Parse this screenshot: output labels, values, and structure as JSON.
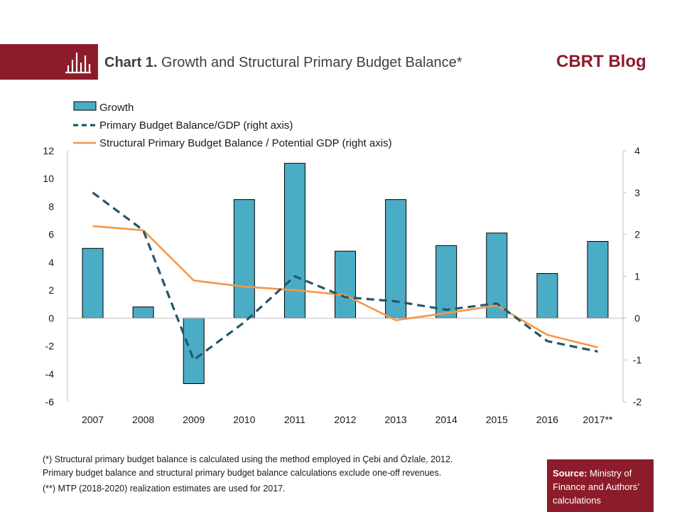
{
  "header": {
    "title_bold": "Chart 1.",
    "title_rest": " Growth and Structural Primary Budget Balance*",
    "brand": "CBRT Blog",
    "icon": "bar-chart-icon"
  },
  "colors": {
    "brand": "#8d1c2b",
    "growth_bar": "#4bacc6",
    "pbb_line": "#215968",
    "spbb_line": "#f79646"
  },
  "chart_data": {
    "type": "bar",
    "categories": [
      "2007",
      "2008",
      "2009",
      "2010",
      "2011",
      "2012",
      "2013",
      "2014",
      "2015",
      "2016",
      "2017**"
    ],
    "series": [
      {
        "name": "Growth",
        "type": "bar",
        "axis": "left",
        "values": [
          5.0,
          0.8,
          -4.7,
          8.5,
          11.1,
          4.8,
          8.5,
          5.2,
          6.1,
          3.2,
          5.5
        ]
      },
      {
        "name": "Primary Budget Balance/GDP (right axis)",
        "type": "line",
        "style": "dashed",
        "axis": "right",
        "values": [
          3.0,
          2.1,
          -1.0,
          -0.1,
          1.0,
          0.5,
          0.4,
          0.2,
          0.35,
          -0.55,
          -0.8
        ]
      },
      {
        "name": "Structural Primary Budget Balance / Potential GDP (right axis)",
        "type": "line",
        "style": "solid",
        "axis": "right",
        "values": [
          2.2,
          2.1,
          0.9,
          0.75,
          0.67,
          0.55,
          -0.05,
          0.12,
          0.3,
          -0.4,
          -0.7
        ]
      }
    ],
    "ylim": [
      -6,
      12
    ],
    "y_ticks": [
      -6,
      -4,
      -2,
      0,
      2,
      4,
      6,
      8,
      10,
      12
    ],
    "y2lim": [
      -2,
      4
    ],
    "y2_ticks": [
      -2,
      -1,
      0,
      1,
      2,
      3,
      4
    ],
    "xlabel": "",
    "ylabel": "",
    "y2label": "",
    "legend_position": "top-left",
    "grid": false
  },
  "notes": {
    "note1_line1": "(*) Structural  primary budget balance is calculated using the method  employed in Çebi and Özlale, 2012.",
    "note1_line2": "Primary budget balance and structural primary budget balance calculations exclude one-off revenues.",
    "note2": "(**) MTP (2018-2020) realization estimates are used for 2017."
  },
  "source": {
    "label": "Source:",
    "text": " Ministry of Finance and Authors’ calculations"
  }
}
